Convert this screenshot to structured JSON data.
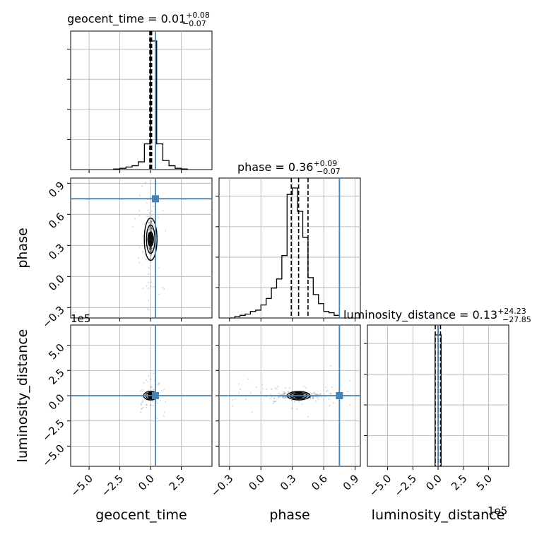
{
  "figure": {
    "panel_titles": {
      "geocent_time": {
        "main": "geocent_time = 0.01",
        "sup": "+0.08",
        "sub": "−0.07"
      },
      "phase": {
        "main": "phase = 0.36",
        "sup": "+0.09",
        "sub": "−0.07"
      },
      "luminosity_distance": {
        "main": "luminosity_distance = 0.13",
        "sup": "+24.23",
        "sub": "−27.85"
      }
    },
    "axis_labels": {
      "x": [
        "geocent_time",
        "phase",
        "luminosity_distance"
      ],
      "y": [
        "phase",
        "luminosity_distance"
      ]
    },
    "offset_labels": {
      "ld_y": "1e5",
      "ld_x": "1e5"
    },
    "x_ticks": {
      "geocent_time": [
        "−5.0",
        "−2.5",
        "0.0",
        "2.5"
      ],
      "phase": [
        "−0.3",
        "0.0",
        "0.3",
        "0.6",
        "0.9"
      ],
      "luminosity_distance": [
        "−5.0",
        "−2.5",
        "0.0",
        "2.5",
        "5.0"
      ]
    },
    "y_ticks": {
      "phase": [
        "−0.3",
        "0.0",
        "0.3",
        "0.6",
        "0.9"
      ],
      "luminosity_distance": [
        "−5.0",
        "−2.5",
        "0.0",
        "2.5",
        "5.0"
      ]
    }
  },
  "chart_data": {
    "type": "corner",
    "parameters": [
      "geocent_time",
      "phase",
      "luminosity_distance"
    ],
    "truths": {
      "geocent_time": 0.4,
      "phase": 0.75,
      "luminosity_distance": 0.0
    },
    "truth_color": "#4682b4",
    "ranges": {
      "geocent_time": [
        -6.5,
        5.0
      ],
      "phase": [
        -0.4,
        0.95
      ],
      "luminosity_distance": [
        -7.0,
        7.0
      ]
    },
    "ranges_unit_note": "luminosity_distance in units of 1e5",
    "quantiles": {
      "geocent_time": [
        -0.06,
        0.01,
        0.09
      ],
      "phase": [
        0.29,
        0.36,
        0.45
      ],
      "luminosity_distance": [
        -0.28,
        0.0,
        0.24
      ]
    },
    "histograms": {
      "geocent_time": {
        "bin_edges": [
          -3.0,
          -2.5,
          -2.0,
          -1.5,
          -1.0,
          -0.5,
          0.0,
          0.5,
          1.0,
          1.5,
          2.0,
          2.5,
          3.0
        ],
        "counts": [
          0.005,
          0.01,
          0.02,
          0.03,
          0.06,
          0.2,
          1.0,
          0.2,
          0.07,
          0.03,
          0.01,
          0.005
        ]
      },
      "phase": {
        "bin_edges": [
          -0.3,
          -0.25,
          -0.2,
          -0.15,
          -0.1,
          -0.05,
          0.0,
          0.05,
          0.1,
          0.15,
          0.2,
          0.25,
          0.3,
          0.35,
          0.4,
          0.45,
          0.5,
          0.55,
          0.6,
          0.65,
          0.7,
          0.75
        ],
        "counts": [
          0.0,
          0.01,
          0.02,
          0.03,
          0.05,
          0.06,
          0.1,
          0.15,
          0.23,
          0.3,
          0.48,
          0.95,
          1.0,
          0.82,
          0.62,
          0.31,
          0.18,
          0.11,
          0.05,
          0.04,
          0.02
        ]
      },
      "luminosity_distance": {
        "bin_edges": [
          -0.3,
          0.3
        ],
        "counts": [
          1.0
        ]
      }
    },
    "grid": true
  }
}
